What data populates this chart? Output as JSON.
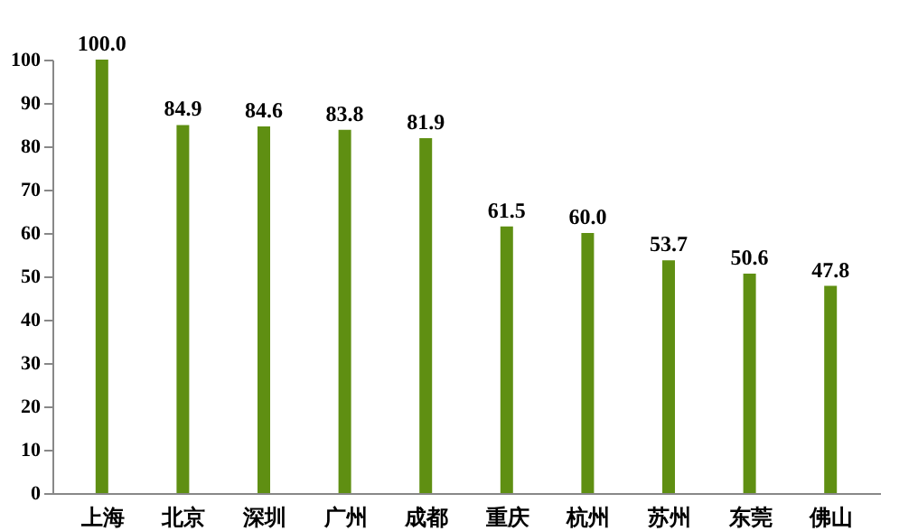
{
  "chart_data": {
    "type": "bar",
    "categories": [
      "上海",
      "北京",
      "深圳",
      "广州",
      "成都",
      "重庆",
      "杭州",
      "苏州",
      "东莞",
      "佛山"
    ],
    "values": [
      100.0,
      84.9,
      84.6,
      83.8,
      81.9,
      61.5,
      60.0,
      53.7,
      50.6,
      47.8
    ],
    "value_labels": [
      "100.0",
      "84.9",
      "84.6",
      "83.8",
      "81.9",
      "61.5",
      "60.0",
      "53.7",
      "50.6",
      "47.8"
    ],
    "color": "#5f8f12",
    "ylim": [
      0,
      100
    ],
    "yticks": [
      0,
      10,
      20,
      30,
      40,
      50,
      60,
      70,
      80,
      90,
      100
    ],
    "grid": false
  }
}
